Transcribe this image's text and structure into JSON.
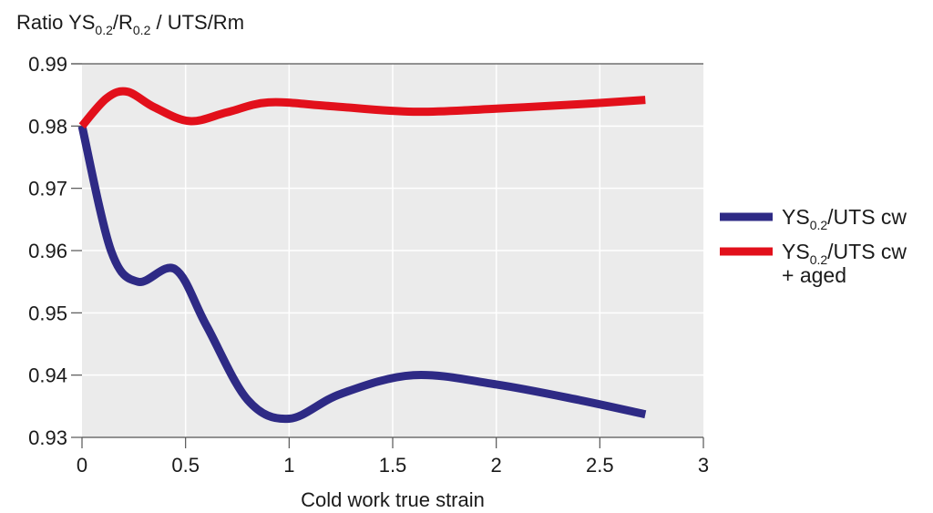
{
  "chart_data": {
    "type": "line",
    "ylabel_parts": [
      "Ratio YS",
      "0.2",
      "/R",
      "0.2",
      " / UTS/Rm"
    ],
    "xlabel": "Cold work true strain",
    "xlim": [
      0,
      3
    ],
    "ylim": [
      0.93,
      0.99
    ],
    "x_ticks": [
      "0",
      "0.5",
      "1",
      "1.5",
      "2",
      "2.5",
      "3"
    ],
    "y_ticks": [
      "0.93",
      "0.94",
      "0.95",
      "0.96",
      "0.97",
      "0.98",
      "0.99"
    ],
    "grid": true,
    "legend_position": "right",
    "series": [
      {
        "name_parts": [
          "YS",
          "0.2",
          "/UTS cw"
        ],
        "color": "#2e2a85",
        "x": [
          0,
          0.14,
          0.27,
          0.45,
          0.6,
          0.8,
          1.0,
          1.25,
          1.6,
          2.0,
          2.4,
          2.72
        ],
        "y": [
          0.98,
          0.96,
          0.955,
          0.957,
          0.948,
          0.936,
          0.933,
          0.937,
          0.94,
          0.9385,
          0.936,
          0.9337
        ]
      },
      {
        "name_parts": [
          "YS",
          "0.2",
          "/UTS cw",
          "+ aged"
        ],
        "color": "#e2101b",
        "x": [
          0,
          0.12,
          0.22,
          0.35,
          0.52,
          0.7,
          0.9,
          1.2,
          1.6,
          2.0,
          2.4,
          2.72
        ],
        "y": [
          0.98,
          0.9845,
          0.9855,
          0.983,
          0.9808,
          0.9822,
          0.9838,
          0.9832,
          0.9823,
          0.9828,
          0.9835,
          0.9842
        ]
      }
    ]
  }
}
